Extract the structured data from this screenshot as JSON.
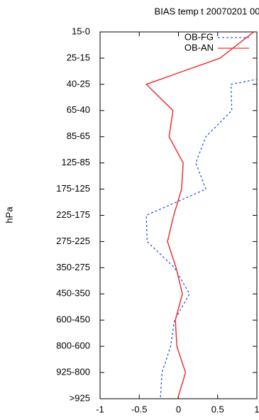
{
  "chart_data": {
    "type": "line",
    "title": "BIAS temp t 20070201 00",
    "y_label": "hPa",
    "categories": [
      "15-0",
      "25-15",
      "40-25",
      "65-40",
      "85-65",
      "125-85",
      "175-125",
      "225-175",
      "275-225",
      "350-275",
      "450-350",
      "600-450",
      "800-600",
      "925-800",
      ">925"
    ],
    "series": [
      {
        "name": "OB-FG",
        "color": "#3355ee",
        "dashed": true,
        "values": [
          null,
          2.4,
          0.67,
          0.68,
          0.35,
          0.22,
          0.35,
          -0.41,
          -0.4,
          -0.05,
          0.14,
          -0.05,
          -0.1,
          -0.21,
          -0.23
        ]
      },
      {
        "name": "OB-AN",
        "color": "#ee3333",
        "dashed": false,
        "values": [
          0.96,
          0.53,
          -0.41,
          -0.07,
          -0.12,
          0.06,
          0.04,
          -0.06,
          -0.14,
          -0.03,
          0.05,
          -0.04,
          -0.02,
          0.09,
          -0.01
        ]
      }
    ],
    "xlim": [
      -1,
      1
    ],
    "xticks": [
      -1,
      -0.5,
      0,
      0.5,
      1
    ],
    "legend": "top-right"
  }
}
